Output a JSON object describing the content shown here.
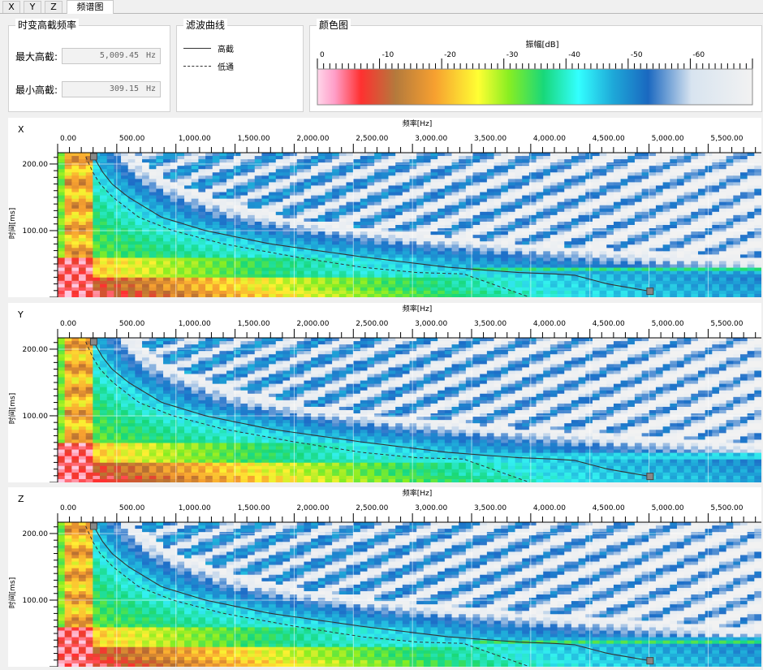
{
  "tabs": [
    {
      "label": "X",
      "active": false
    },
    {
      "label": "Y",
      "active": false
    },
    {
      "label": "Z",
      "active": false
    },
    {
      "label": "频谱图",
      "active": true
    }
  ],
  "cutoff_group": {
    "title": "时变高截频率",
    "max_label": "最大高截:",
    "max_value": "5,009.45",
    "max_unit": "Hz",
    "min_label": "最小高截:",
    "min_value": "309.15",
    "min_unit": "Hz"
  },
  "filter_group": {
    "title": "滤波曲线",
    "high_cut_label": "高截",
    "low_pass_label": "低通"
  },
  "color_group": {
    "title": "颜色图",
    "axis_label": "振幅[dB]",
    "ticks": [
      "0",
      "-10",
      "-20",
      "-30",
      "-40",
      "-50",
      "-60"
    ]
  },
  "spectrograms": [
    {
      "label": "X",
      "x_axis_label": "频率[Hz]",
      "y_axis_label": "时间[ms]"
    },
    {
      "label": "Y",
      "x_axis_label": "频率[Hz]",
      "y_axis_label": "时间[ms]"
    },
    {
      "label": "Z",
      "x_axis_label": "频率[Hz]",
      "y_axis_label": "时间[ms]"
    }
  ],
  "x_ticks": [
    "0.00",
    "500.00",
    "1,000.00",
    "1,500.00",
    "2,000.00",
    "2,500.00",
    "3,000.00",
    "3,500.00",
    "4,000.00",
    "4,500.00",
    "5,000.00",
    "5,500.00"
  ],
  "y_ticks": [
    "200.00",
    "100.00"
  ],
  "colors": {
    "high_cut_line": "#333333",
    "low_pass_line": "#333333",
    "handle": "#888888"
  }
}
